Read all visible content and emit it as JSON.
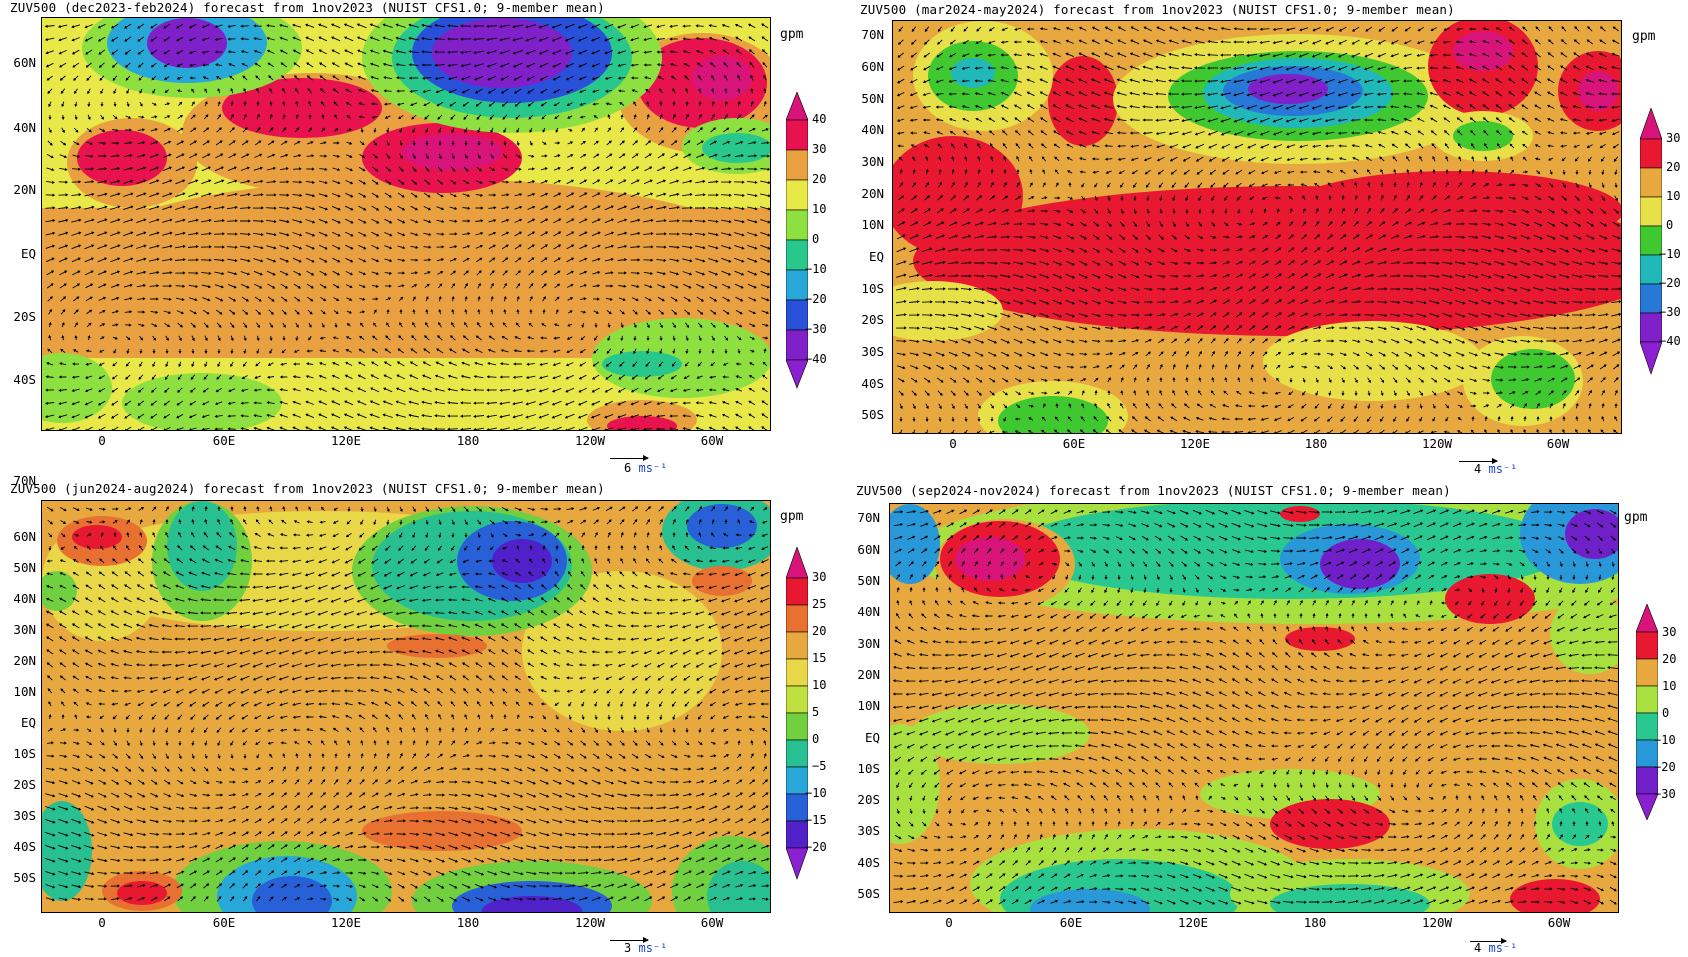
{
  "unit": "gpm",
  "panels": [
    {
      "title": "ZUV500 (dec2023-feb2024) forecast from 1nov2023 (NUIST CFS1.0; 9-member mean)",
      "ylabels": [
        "60N",
        "40N",
        "20N",
        "EQ",
        "20S",
        "40S"
      ],
      "xlabels": [
        "0",
        "60E",
        "120E",
        "180",
        "120W",
        "60W"
      ],
      "ref_vector": "6",
      "ref_unit": "ms⁻¹",
      "colorbar_labels": [
        "40",
        "30",
        "20",
        "10",
        "0",
        "−10",
        "−20",
        "−30",
        "−40"
      ],
      "colors": [
        "#e8124e",
        "#e8a040",
        "#e8e848",
        "#8ee040",
        "#28c88c",
        "#28a8d8",
        "#2850d8",
        "#8020c8"
      ],
      "top_arrow": "#d8147a",
      "bottom_arrow": "#8a20d0"
    },
    {
      "title": "ZUV500 (mar2024-may2024) forecast from 1nov2023 (NUIST CFS1.0; 9-member mean)",
      "ylabels": [
        "70N",
        "60N",
        "50N",
        "40N",
        "30N",
        "20N",
        "10N",
        "EQ",
        "10S",
        "20S",
        "30S",
        "40S",
        "50S"
      ],
      "xlabels": [
        "0",
        "60E",
        "120E",
        "180",
        "120W",
        "60W"
      ],
      "ref_vector": "4",
      "ref_unit": "ms⁻¹",
      "colorbar_labels": [
        "30",
        "20",
        "10",
        "0",
        "−10",
        "−20",
        "−30",
        "−40"
      ],
      "colors": [
        "#e81830",
        "#e8a840",
        "#e8e048",
        "#40c830",
        "#20b8b8",
        "#2878d8",
        "#8020c8"
      ],
      "top_arrow": "#d8147a",
      "bottom_arrow": "#8a20d0"
    },
    {
      "title": "ZUV500 (jun2024-aug2024) forecast from 1nov2023 (NUIST CFS1.0; 9-member mean)",
      "ylabels": [
        "70N",
        "60N",
        "50N",
        "40N",
        "30N",
        "20N",
        "10N",
        "EQ",
        "10S",
        "20S",
        "30S",
        "40S",
        "50S"
      ],
      "xlabels": [
        "0",
        "60E",
        "120E",
        "180",
        "120W",
        "60W"
      ],
      "ref_vector": "3",
      "ref_unit": "ms⁻¹",
      "colorbar_labels": [
        "30",
        "25",
        "20",
        "15",
        "10",
        "5",
        "0",
        "−5",
        "−10",
        "−15",
        "−20"
      ],
      "colors": [
        "#e81830",
        "#e87030",
        "#e8a840",
        "#e8d848",
        "#c0e040",
        "#70d040",
        "#28c090",
        "#28a8d8",
        "#2860d8",
        "#5020c8"
      ],
      "top_arrow": "#d8147a",
      "bottom_arrow": "#8a20d0"
    },
    {
      "title": "ZUV500 (sep2024-nov2024) forecast from 1nov2023 (NUIST CFS1.0; 9-member mean)",
      "ylabels": [
        "70N",
        "60N",
        "50N",
        "40N",
        "30N",
        "20N",
        "10N",
        "EQ",
        "10S",
        "20S",
        "30S",
        "40S",
        "50S"
      ],
      "xlabels": [
        "0",
        "60E",
        "120E",
        "180",
        "120W",
        "60W"
      ],
      "ref_vector": "4",
      "ref_unit": "ms⁻¹",
      "colorbar_labels": [
        "30",
        "20",
        "10",
        "0",
        "−10",
        "−20",
        "−30"
      ],
      "colors": [
        "#e81830",
        "#e8a840",
        "#a8e040",
        "#28c890",
        "#2898d8",
        "#7020c8"
      ],
      "top_arrow": "#d8147a",
      "bottom_arrow": "#8a20d0"
    }
  ]
}
